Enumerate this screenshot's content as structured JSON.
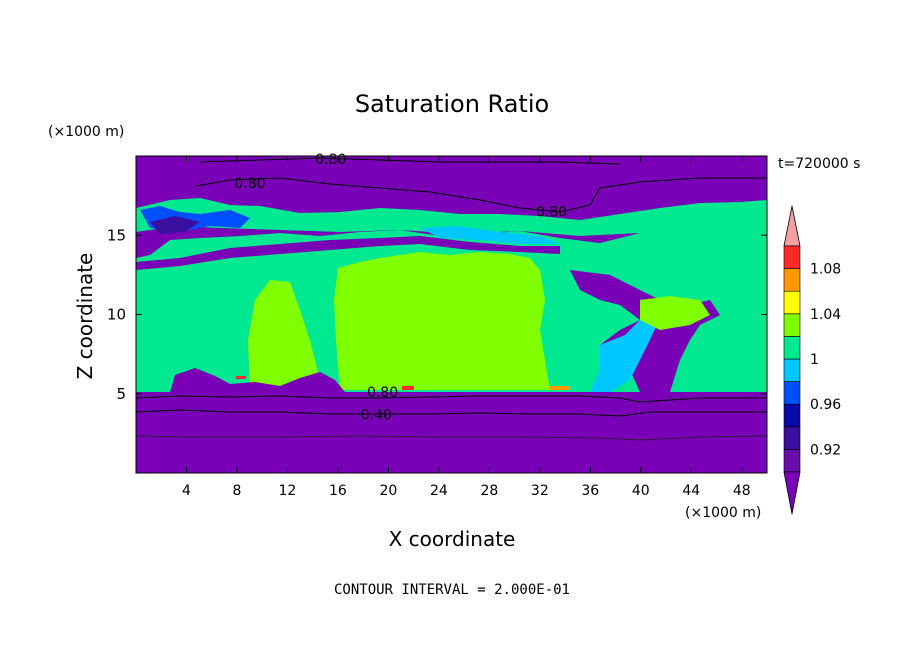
{
  "chart_data": {
    "type": "heatmap",
    "title": "Saturation Ratio",
    "xlabel": "X coordinate",
    "ylabel": "Z coordinate",
    "x_unit": "(×1000 m)",
    "y_unit": "(×1000 m)",
    "time_label": "t=720000 s",
    "footer": "CONTOUR INTERVAL = 2.000E-01",
    "xlim": [
      0,
      50
    ],
    "ylim": [
      0,
      20
    ],
    "x_ticks": [
      "4",
      "8",
      "12",
      "16",
      "20",
      "24",
      "28",
      "32",
      "36",
      "40",
      "44",
      "48"
    ],
    "y_ticks": [
      "5",
      "10",
      "15"
    ],
    "colorbar": {
      "labels": [
        "1.08",
        "1.04",
        "1",
        "0.96",
        "0.92"
      ],
      "levels": [
        0.9,
        0.92,
        0.94,
        0.96,
        0.98,
        1.0,
        1.02,
        1.04,
        1.06,
        1.08,
        1.1
      ],
      "colors": [
        "#6a0dad",
        "#3a10a0",
        "#0a0aa8",
        "#0050ff",
        "#00c8ff",
        "#00e890",
        "#80ff00",
        "#ffff00",
        "#ff9900",
        "#ff2a2a"
      ],
      "under_color": "#7a00b8",
      "over_color": "#f4a0a0"
    },
    "contour_labels": [
      {
        "text": "0.80",
        "x": 14.2,
        "z": 19.8
      },
      {
        "text": "0.80",
        "x": 7.8,
        "z": 18.3
      },
      {
        "text": "0.80",
        "x": 31.7,
        "z": 16.5
      },
      {
        "text": "0.80",
        "x": 18.3,
        "z": 5.1
      },
      {
        "text": "0.40",
        "x": 17.8,
        "z": 3.7
      }
    ],
    "regions": [
      {
        "level": "0.90-0.92",
        "description": "stable layer below ~5 km and upper band above ~17 km"
      },
      {
        "level": "0.92-0.96",
        "description": "thin patches near 16-17 km and 13 km"
      },
      {
        "level": "0.98-1.00",
        "description": "broad region from ~5 km to ~15 km"
      },
      {
        "level": "1.00-1.02",
        "description": "core region x 16-34 km, z 5-14 km"
      }
    ]
  }
}
